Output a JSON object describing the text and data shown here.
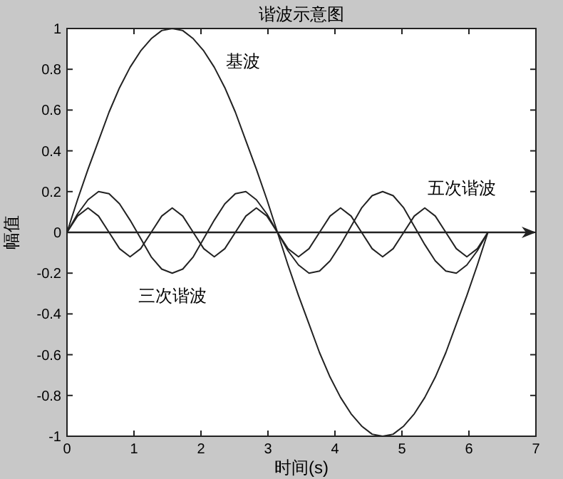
{
  "chart_data": {
    "type": "line",
    "title": "谐波示意图",
    "xlabel": "时间(s)",
    "ylabel": "幅值",
    "x": [
      0,
      0.157,
      0.314,
      0.471,
      0.628,
      0.785,
      0.942,
      1.1,
      1.257,
      1.414,
      1.571,
      1.728,
      1.885,
      2.042,
      2.199,
      2.356,
      2.513,
      2.67,
      2.827,
      2.985,
      3.142,
      3.299,
      3.456,
      3.613,
      3.77,
      3.927,
      4.084,
      4.241,
      4.398,
      4.555,
      4.712,
      4.869,
      5.027,
      5.184,
      5.341,
      5.498,
      5.655,
      5.812,
      5.969,
      6.126,
      6.283
    ],
    "series": [
      {
        "color": "#222222",
        "values": [
          0,
          0.16,
          0.31,
          0.45,
          0.59,
          0.71,
          0.81,
          0.89,
          0.95,
          0.99,
          1,
          0.99,
          0.95,
          0.89,
          0.81,
          0.71,
          0.59,
          0.45,
          0.31,
          0.16,
          0,
          -0.16,
          -0.31,
          -0.45,
          -0.59,
          -0.71,
          -0.81,
          -0.89,
          -0.95,
          -0.99,
          -1,
          -0.99,
          -0.95,
          -0.89,
          -0.81,
          -0.71,
          -0.59,
          -0.45,
          -0.31,
          -0.16,
          0
        ]
      },
      {
        "color": "#222222",
        "values": [
          0,
          0.09,
          0.16,
          0.2,
          0.19,
          0.14,
          0.06,
          -0.03,
          -0.12,
          -0.18,
          -0.2,
          -0.18,
          -0.12,
          -0.03,
          0.06,
          0.14,
          0.19,
          0.2,
          0.16,
          0.09,
          0,
          -0.09,
          -0.16,
          -0.2,
          -0.19,
          -0.14,
          -0.06,
          0.03,
          0.12,
          0.18,
          0.2,
          0.18,
          0.12,
          0.03,
          -0.06,
          -0.14,
          -0.19,
          -0.2,
          -0.16,
          -0.09,
          0
        ]
      },
      {
        "color": "#222222",
        "values": [
          0,
          0.08,
          0.12,
          0.08,
          0,
          -0.08,
          -0.12,
          -0.08,
          0,
          0.08,
          0.12,
          0.08,
          0,
          -0.08,
          -0.12,
          -0.08,
          0,
          0.08,
          0.12,
          0.08,
          0,
          -0.08,
          -0.12,
          -0.08,
          0,
          0.08,
          0.12,
          0.08,
          0,
          -0.08,
          -0.12,
          -0.08,
          0,
          0.08,
          0.12,
          0.08,
          0,
          -0.08,
          -0.12,
          -0.08,
          0
        ]
      }
    ],
    "xlim": [
      0,
      7
    ],
    "ylim": [
      -1,
      1
    ],
    "xticks": [
      0,
      1,
      2,
      3,
      4,
      5,
      6,
      7
    ],
    "yticks": [
      -1,
      -0.8,
      -0.6,
      -0.4,
      -0.2,
      0,
      0.2,
      0.4,
      0.6,
      0.8,
      1
    ],
    "ref_lines": [
      {
        "axis": "y",
        "value": 0,
        "color": "#222222"
      }
    ],
    "annotations": [
      {
        "text": "基波",
        "x": 2.199,
        "y": 0.81
      },
      {
        "text": "三次谐波",
        "x": 1.571,
        "y": -0.2
      },
      {
        "text": "五次谐波",
        "x": 5.341,
        "y": 0.12
      }
    ],
    "grid": false,
    "marker": "none",
    "line_style": "solid"
  }
}
